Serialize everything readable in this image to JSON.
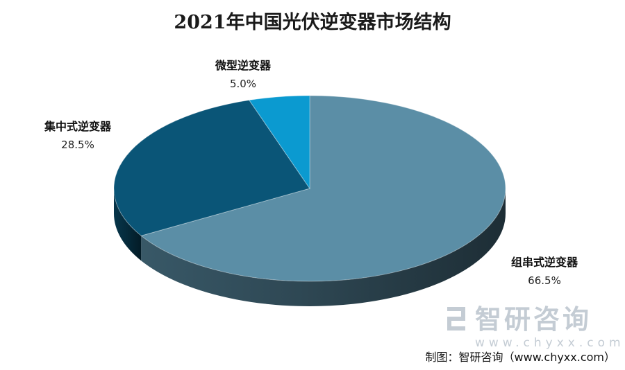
{
  "chart_data": {
    "type": "pie",
    "title": "2021年中国光伏逆变器市场结构",
    "slices": [
      {
        "name": "组串式逆变器",
        "value": 66.5,
        "label": "66.5%",
        "color": "#5b8ea6"
      },
      {
        "name": "集中式逆变器",
        "value": 28.5,
        "label": "28.5%",
        "color": "#0a5577"
      },
      {
        "name": "微型逆变器",
        "value": 5.0,
        "label": "5.0%",
        "color": "#0b9ad0"
      }
    ]
  },
  "watermark": {
    "name": "智研咨询",
    "url": "www.chyxx.com"
  },
  "source": "制图：智研咨询（www.chyxx.com）"
}
